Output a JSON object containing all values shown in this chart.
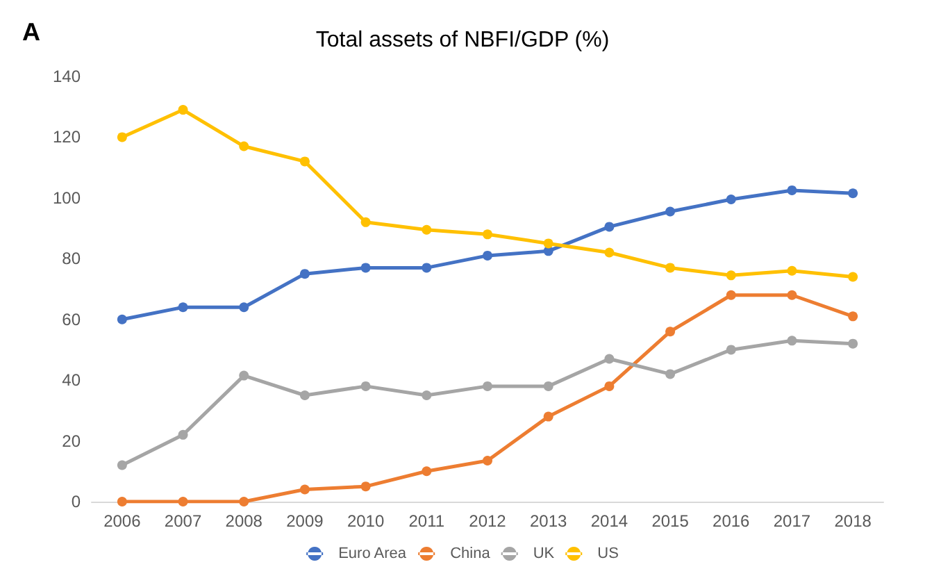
{
  "chart_data": {
    "type": "line",
    "title": "Total assets of NBFI/GDP (%)",
    "annotations": [
      "A"
    ],
    "categories": [
      "2006",
      "2007",
      "2008",
      "2009",
      "2010",
      "2011",
      "2012",
      "2013",
      "2014",
      "2015",
      "2016",
      "2017",
      "2018"
    ],
    "series": [
      {
        "name": "Euro Area",
        "color": "#4472c4",
        "values": [
          60,
          64,
          64,
          75,
          77,
          77,
          81,
          82.5,
          90.5,
          95.5,
          99.5,
          102.5,
          101.5
        ]
      },
      {
        "name": "China",
        "color": "#ed7d31",
        "values": [
          0,
          0,
          0,
          4,
          5,
          10,
          13.5,
          28,
          38,
          56,
          68,
          68,
          61
        ]
      },
      {
        "name": "UK",
        "color": "#a5a5a5",
        "values": [
          12,
          22,
          41.5,
          35,
          38,
          35,
          38,
          38,
          47,
          42,
          50,
          53,
          52
        ]
      },
      {
        "name": "US",
        "color": "#ffc000",
        "values": [
          120,
          129,
          117,
          112,
          92,
          89.5,
          88,
          85,
          82,
          77,
          74.5,
          76,
          74
        ]
      }
    ],
    "ylim": [
      0,
      140
    ],
    "yticks": [
      0,
      20,
      40,
      60,
      80,
      100,
      120,
      140
    ],
    "grid": false,
    "legend": "bottom",
    "marker": "circle",
    "line_style": "solid"
  }
}
